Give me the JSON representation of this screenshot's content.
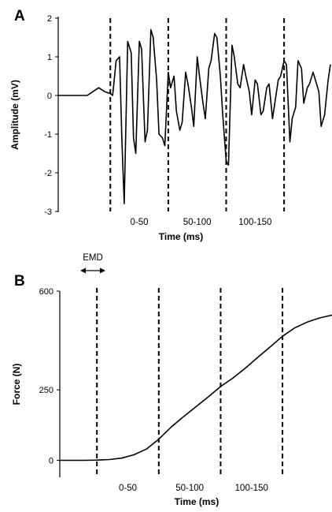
{
  "chart_data": [
    {
      "panel": "A",
      "type": "line",
      "xlabel": "Time (ms)",
      "ylabel": "Amplitude (mV)",
      "ylim": [
        -3,
        2
      ],
      "yticks": [
        -3,
        -2,
        -1,
        0,
        1,
        2
      ],
      "xlim": [
        -45,
        190
      ],
      "window_labels": [
        {
          "text": "0-50",
          "x": 25
        },
        {
          "text": "50-100",
          "x": 75
        },
        {
          "text": "100-150",
          "x": 125
        }
      ],
      "vlines": [
        0,
        50,
        100,
        150
      ],
      "series": [
        {
          "x": [
            -45,
            -40,
            -35,
            -30,
            -25,
            -20,
            -15,
            -10,
            -5,
            0,
            2,
            5,
            8,
            10,
            12,
            15,
            18,
            20,
            22,
            25,
            27,
            30,
            32,
            35,
            37,
            40,
            42,
            45,
            47,
            50,
            52,
            55,
            57,
            60,
            62,
            65,
            67,
            70,
            72,
            75,
            77,
            80,
            82,
            85,
            87,
            90,
            92,
            95,
            97,
            100,
            102,
            105,
            107,
            110,
            112,
            115,
            117,
            120,
            122,
            125,
            127,
            130,
            132,
            135,
            137,
            140,
            142,
            145,
            147,
            150,
            152,
            155,
            157,
            160,
            162,
            165,
            167,
            170,
            172,
            175,
            177,
            180,
            182,
            185,
            188,
            190
          ],
          "y": [
            0,
            0,
            0,
            0,
            0,
            0,
            0.1,
            0.2,
            0.1,
            0.05,
            0,
            0.9,
            1.0,
            -1.2,
            -2.8,
            1.4,
            1.1,
            -1.1,
            -1.5,
            1.4,
            1.2,
            -1.2,
            -0.9,
            1.7,
            1.5,
            0.4,
            -1.0,
            -1.1,
            -1.3,
            0.6,
            0.2,
            0.5,
            -0.4,
            -0.9,
            -0.7,
            0.6,
            0.3,
            -0.3,
            -0.8,
            1.0,
            0.5,
            -0.2,
            -0.6,
            0.7,
            0.9,
            1.6,
            1.5,
            0.5,
            -0.5,
            -1.7,
            -1.8,
            1.3,
            1.0,
            0.3,
            0.2,
            0.8,
            0.5,
            0.1,
            -0.5,
            0.4,
            0.3,
            -0.5,
            -0.4,
            0.2,
            0.3,
            -0.6,
            -0.2,
            0.4,
            0.5,
            0.9,
            0.8,
            -1.2,
            -0.6,
            -0.3,
            0.9,
            0.7,
            -0.2,
            0.2,
            0.3,
            0.6,
            0.4,
            0.1,
            -0.8,
            -0.5,
            0.4,
            0.8
          ]
        }
      ]
    },
    {
      "panel": "B",
      "type": "line",
      "xlabel": "Time (ms)",
      "ylabel": "Force (N)",
      "ylim": [
        -60,
        600
      ],
      "yticks": [
        0,
        250,
        600
      ],
      "xlim": [
        -30,
        190
      ],
      "emd_label": "EMD",
      "window_labels": [
        {
          "text": "0-50",
          "x": 25
        },
        {
          "text": "50-100",
          "x": 75
        },
        {
          "text": "100-150",
          "x": 125
        }
      ],
      "vlines": [
        0,
        50,
        100,
        150
      ],
      "series": [
        {
          "x": [
            -30,
            -10,
            0,
            10,
            20,
            30,
            40,
            50,
            60,
            70,
            80,
            90,
            100,
            110,
            120,
            130,
            140,
            150,
            160,
            170,
            180,
            190
          ],
          "y": [
            0,
            0,
            1,
            3,
            8,
            20,
            40,
            75,
            118,
            155,
            190,
            225,
            262,
            292,
            327,
            365,
            402,
            440,
            470,
            490,
            505,
            515
          ]
        }
      ]
    }
  ],
  "panels": {
    "A": {
      "letter": "A"
    },
    "B": {
      "letter": "B"
    }
  }
}
